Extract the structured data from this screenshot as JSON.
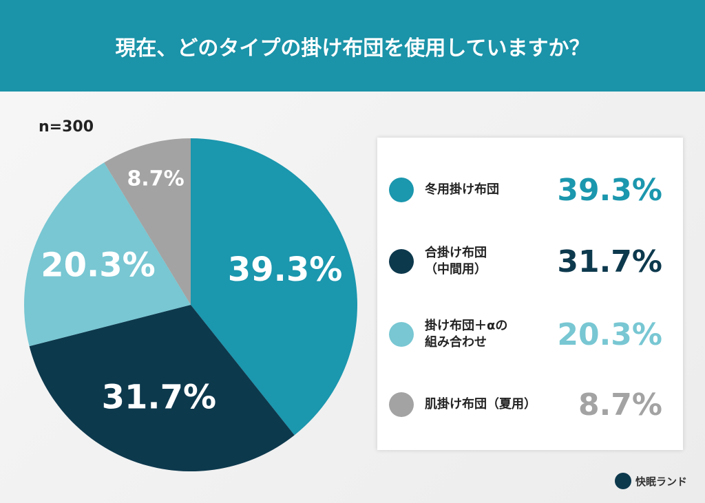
{
  "chart_data": {
    "type": "pie",
    "title": "現在、どのタイプの掛け布団を使用していますか？",
    "subtitle": "n=300",
    "categories": [
      "冬用掛け布団",
      "合掛け布団\n（中間用）",
      "掛け布団＋αの\n組み合わせ",
      "肌掛け布団（夏用）"
    ],
    "values": [
      39.3,
      31.7,
      20.3,
      8.7
    ],
    "value_labels": [
      "39.3%",
      "31.7%",
      "20.3%",
      "8.7%"
    ],
    "colors": [
      "#1b97ae",
      "#0d394d",
      "#78c7d3",
      "#a3a3a3"
    ]
  },
  "brand": "快眠ランド"
}
